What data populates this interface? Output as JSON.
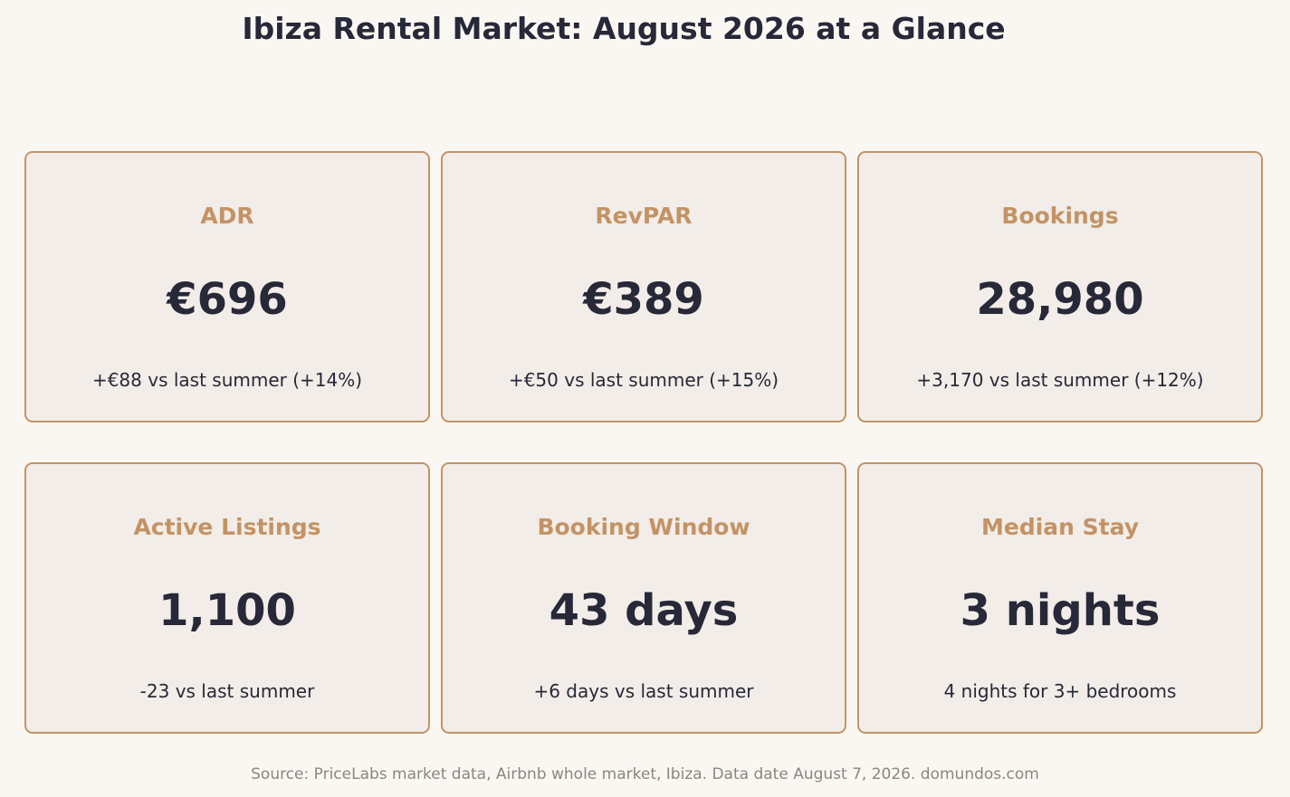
{
  "title": "Ibiza Rental Market: August 2026 at a Glance",
  "source": "Source: PriceLabs market data, Airbnb whole market, Ibiza. Data date August 7, 2026. domundos.com",
  "colors": {
    "background": "#faf7f3",
    "card_fill": "#f2ede8",
    "card_border": "#c39366",
    "label": "#c39366",
    "value": "#272838",
    "source": "#8a8680"
  },
  "chart_data": {
    "type": "table",
    "title": "Ibiza Rental Market: August 2026 at a Glance",
    "cards": [
      {
        "label": "ADR",
        "value": "€696",
        "delta": "+€88 vs last summer (+14%)"
      },
      {
        "label": "RevPAR",
        "value": "€389",
        "delta": "+€50 vs last summer (+15%)"
      },
      {
        "label": "Bookings",
        "value": "28,980",
        "delta": "+3,170 vs last summer (+12%)"
      },
      {
        "label": "Active Listings",
        "value": "1,100",
        "delta": "-23 vs last summer"
      },
      {
        "label": "Booking Window",
        "value": "43 days",
        "delta": "+6 days vs last summer"
      },
      {
        "label": "Median Stay",
        "value": "3 nights",
        "delta": "4 nights for 3+ bedrooms"
      }
    ]
  }
}
